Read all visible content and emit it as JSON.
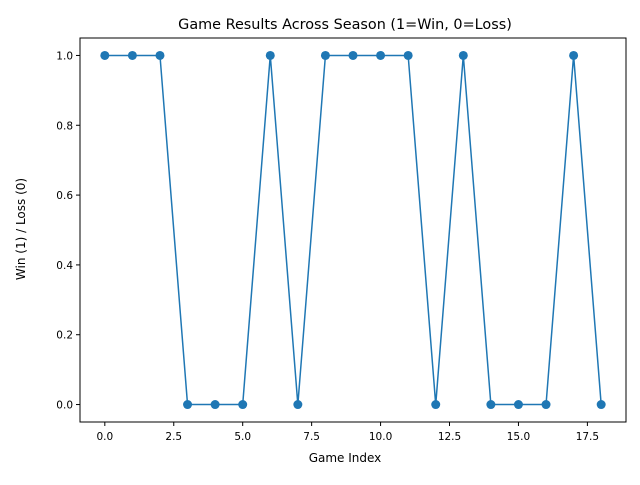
{
  "chart_data": {
    "type": "line",
    "title": "Game Results Across Season (1=Win, 0=Loss)",
    "xlabel": "Game Index",
    "ylabel": "Win (1) / Loss (0)",
    "x": [
      0,
      1,
      2,
      3,
      4,
      5,
      6,
      7,
      8,
      9,
      10,
      11,
      12,
      13,
      14,
      15,
      16,
      17,
      18
    ],
    "series": [
      {
        "values": [
          1,
          1,
          1,
          0,
          0,
          0,
          1,
          0,
          1,
          1,
          1,
          1,
          0,
          1,
          0,
          0,
          0,
          1,
          0
        ],
        "color": "#1f77b4",
        "marker": "circle"
      }
    ],
    "xlim": [
      -0.9,
      18.9
    ],
    "ylim": [
      -0.05,
      1.05
    ],
    "x_ticks": [
      0.0,
      2.5,
      5.0,
      7.5,
      10.0,
      12.5,
      15.0,
      17.5
    ],
    "x_tick_labels": [
      "0.0",
      "2.5",
      "5.0",
      "7.5",
      "10.0",
      "12.5",
      "15.0",
      "17.5"
    ],
    "y_ticks": [
      0.0,
      0.2,
      0.4,
      0.6,
      0.8,
      1.0
    ],
    "y_tick_labels": [
      "0.0",
      "0.2",
      "0.4",
      "0.6",
      "0.8",
      "1.0"
    ],
    "grid": false,
    "legend": "none"
  }
}
